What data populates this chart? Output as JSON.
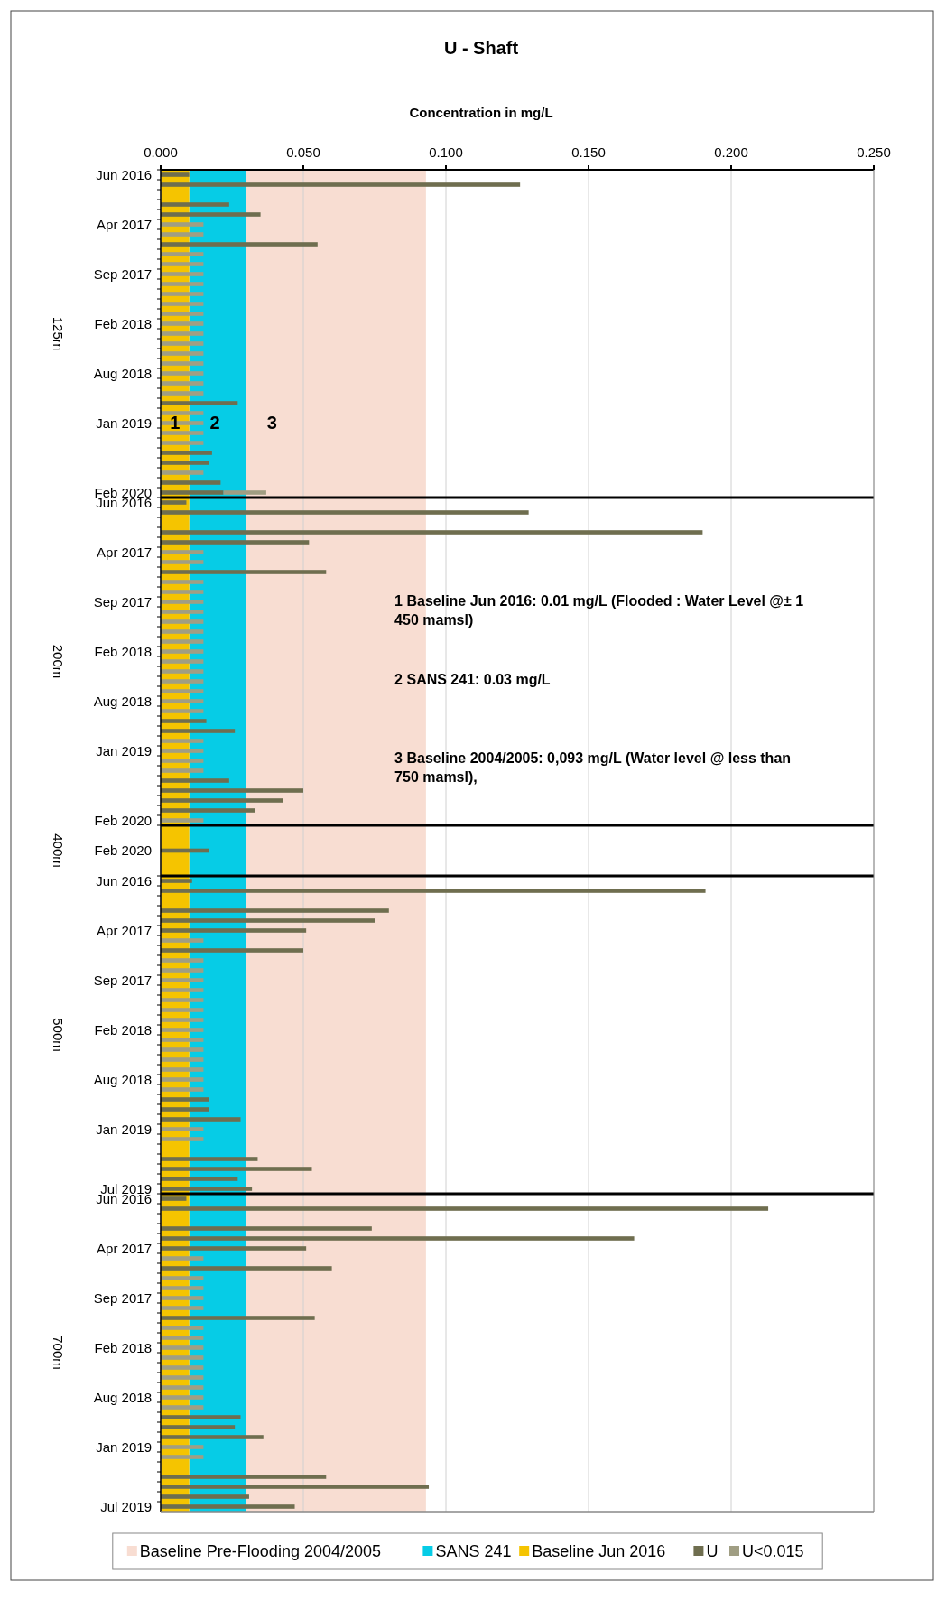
{
  "chart_data": [
    {
      "type": "bar",
      "orientation": "horizontal",
      "stacked": true,
      "title": "U - Shaft",
      "xlabel": "Concentration in mg/L",
      "ylabel": "125m",
      "grid": "x",
      "xlim": [
        0,
        0.25
      ],
      "xticks": [
        {
          "value": 0,
          "label": "0.000"
        },
        {
          "value": 0.05,
          "label": "0.050"
        },
        {
          "value": 0.1,
          "label": "0.100"
        },
        {
          "value": 0.15,
          "label": "0.150"
        },
        {
          "value": 0.2,
          "label": "0.200"
        },
        {
          "value": 0.25,
          "label": "0.250"
        }
      ],
      "categories": [
        "Jun 2016",
        null,
        null,
        null,
        null,
        "Apr 2017",
        null,
        null,
        null,
        null,
        "Sep 2017",
        null,
        null,
        null,
        null,
        "Feb 2018",
        null,
        null,
        null,
        null,
        "Aug 2018",
        null,
        null,
        null,
        null,
        "Jan 2019",
        null,
        null,
        null,
        null,
        null,
        null,
        "Feb 2020"
      ],
      "series": [
        {
          "color": "#6f6e4f",
          "values": [
            0.01,
            0.126,
            null,
            0.024,
            0.035,
            null,
            null,
            0.055,
            null,
            null,
            null,
            null,
            null,
            null,
            null,
            null,
            null,
            null,
            null,
            null,
            null,
            null,
            null,
            0.027,
            null,
            null,
            null,
            null,
            0.018,
            0.017,
            null,
            0.021,
            0.022
          ]
        },
        {
          "color": "#a09e83",
          "values": [
            null,
            null,
            null,
            null,
            null,
            0.015,
            0.015,
            null,
            0.015,
            0.015,
            0.015,
            0.015,
            0.015,
            0.015,
            0.015,
            0.015,
            0.015,
            0.015,
            0.015,
            0.015,
            0.015,
            0.015,
            0.015,
            null,
            0.015,
            0.015,
            0.015,
            0.015,
            null,
            null,
            0.015,
            null,
            0.015
          ]
        }
      ],
      "bands": [
        {
          "axis": "x",
          "from": 0.03,
          "to": 0.093,
          "label": "3",
          "color": "#f8ddd2"
        },
        {
          "axis": "x",
          "from": 0.01,
          "to": 0.03,
          "label": "2",
          "color": "#06cce6"
        },
        {
          "axis": "x",
          "from": 0,
          "to": 0.01,
          "label": "1",
          "color": "#f5c400"
        }
      ]
    },
    {
      "type": "bar",
      "orientation": "horizontal",
      "stacked": true,
      "ylabel": "200m",
      "grid": "x",
      "xlim": [
        0,
        0.25
      ],
      "tick_labels": "y",
      "xticks": [
        0,
        0.05,
        0.1,
        0.15,
        0.2,
        0.25
      ],
      "categories": [
        "Jun 2016",
        null,
        null,
        null,
        null,
        "Apr 2017",
        null,
        null,
        null,
        null,
        "Sep 2017",
        null,
        null,
        null,
        null,
        "Feb 2018",
        null,
        null,
        null,
        null,
        "Aug 2018",
        null,
        null,
        null,
        null,
        "Jan 2019",
        null,
        null,
        null,
        null,
        null,
        null,
        "Feb 2020"
      ],
      "series": [
        {
          "color": "#6f6e4f",
          "values": [
            0.009,
            0.129,
            null,
            0.19,
            0.052,
            null,
            null,
            0.058,
            null,
            null,
            null,
            null,
            null,
            null,
            null,
            null,
            null,
            null,
            null,
            null,
            null,
            null,
            0.016,
            0.026,
            null,
            null,
            null,
            null,
            0.024,
            0.05,
            0.043,
            0.033,
            null
          ]
        },
        {
          "color": "#a09e83",
          "values": [
            null,
            null,
            null,
            null,
            null,
            0.015,
            0.015,
            null,
            0.015,
            0.015,
            0.015,
            0.015,
            0.015,
            0.015,
            0.015,
            0.015,
            0.015,
            0.015,
            0.015,
            0.015,
            0.015,
            0.015,
            null,
            null,
            0.015,
            0.015,
            0.015,
            0.015,
            null,
            null,
            null,
            null,
            0.015
          ]
        }
      ],
      "bands": [
        {
          "axis": "x",
          "from": 0.03,
          "to": 0.093,
          "color": "#f8ddd2"
        },
        {
          "axis": "x",
          "from": 0.01,
          "to": 0.03,
          "color": "#06cce6"
        },
        {
          "axis": "x",
          "from": 0,
          "to": 0.01,
          "color": "#f5c400"
        }
      ],
      "annotations": [
        "1 Baseline Jun 2016: 0.01 mg/L (Flooded : Water Level @± 1 450 mamsl)",
        "2 SANS 241: 0.03 mg/L",
        "3 Baseline 2004/2005: 0,093 mg/L (Water level @ less than 750 mamsl),"
      ]
    },
    {
      "type": "bar",
      "orientation": "horizontal",
      "stacked": true,
      "ylabel": "400m",
      "grid": "x",
      "xlim": [
        0,
        0.25
      ],
      "tick_labels": "y",
      "xticks": [
        0,
        0.05,
        0.1,
        0.15,
        0.2,
        0.25
      ],
      "categories": [
        "Feb 2020"
      ],
      "series": [
        {
          "color": "#6f6e4f",
          "values": [
            0.017
          ]
        }
      ],
      "bands": [
        {
          "axis": "x",
          "from": 0.03,
          "to": 0.093,
          "color": "#f8ddd2"
        },
        {
          "axis": "x",
          "from": 0.01,
          "to": 0.03,
          "color": "#06cce6"
        },
        {
          "axis": "x",
          "from": 0,
          "to": 0.01,
          "color": "#f5c400"
        }
      ]
    },
    {
      "type": "bar",
      "orientation": "horizontal",
      "stacked": true,
      "ylabel": "500m",
      "grid": "x",
      "xlim": [
        0,
        0.25
      ],
      "tick_labels": "y",
      "xticks": [
        0,
        0.05,
        0.1,
        0.15,
        0.2,
        0.25
      ],
      "categories": [
        "Jun 2016",
        null,
        null,
        null,
        null,
        "Apr 2017",
        null,
        null,
        null,
        null,
        "Sep 2017",
        null,
        null,
        null,
        null,
        "Feb 2018",
        null,
        null,
        null,
        null,
        "Aug 2018",
        null,
        null,
        null,
        null,
        "Jan 2019",
        null,
        null,
        null,
        null,
        null,
        "Jul 2019"
      ],
      "series": [
        {
          "color": "#6f6e4f",
          "values": [
            0.011,
            0.191,
            null,
            0.08,
            0.075,
            0.051,
            null,
            0.05,
            null,
            null,
            null,
            null,
            null,
            null,
            null,
            null,
            null,
            null,
            null,
            null,
            null,
            null,
            0.017,
            0.017,
            0.028,
            null,
            null,
            null,
            0.034,
            0.053,
            0.027,
            0.032
          ]
        },
        {
          "color": "#a09e83",
          "values": [
            null,
            null,
            null,
            null,
            null,
            null,
            0.015,
            null,
            0.015,
            0.015,
            0.015,
            0.015,
            0.015,
            0.015,
            0.015,
            0.015,
            0.015,
            0.015,
            0.015,
            0.015,
            0.015,
            0.015,
            null,
            null,
            null,
            0.015,
            0.015,
            null,
            null,
            null,
            null,
            null
          ]
        }
      ],
      "bands": [
        {
          "axis": "x",
          "from": 0.03,
          "to": 0.093,
          "color": "#f8ddd2"
        },
        {
          "axis": "x",
          "from": 0.01,
          "to": 0.03,
          "color": "#06cce6"
        },
        {
          "axis": "x",
          "from": 0,
          "to": 0.01,
          "color": "#f5c400"
        }
      ]
    },
    {
      "type": "bar",
      "orientation": "horizontal",
      "stacked": true,
      "ylabel": "700m",
      "grid": "x",
      "xlim": [
        0,
        0.25
      ],
      "tick_labels": "y",
      "legend": "bottom",
      "xticks": [
        0,
        0.05,
        0.1,
        0.15,
        0.2,
        0.25
      ],
      "categories": [
        "Jun 2016",
        null,
        null,
        null,
        null,
        "Apr 2017",
        null,
        null,
        null,
        null,
        "Sep 2017",
        null,
        null,
        null,
        null,
        "Feb 2018",
        null,
        null,
        null,
        null,
        "Aug 2018",
        null,
        null,
        null,
        null,
        "Jan 2019",
        null,
        null,
        null,
        null,
        null,
        "Jul 2019"
      ],
      "series": [
        {
          "name": "U",
          "color": "#6f6e4f",
          "values": [
            0.009,
            0.213,
            null,
            0.074,
            0.166,
            0.051,
            null,
            0.06,
            null,
            null,
            null,
            null,
            0.054,
            null,
            null,
            null,
            null,
            null,
            null,
            null,
            null,
            null,
            0.028,
            0.026,
            0.036,
            null,
            null,
            null,
            0.058,
            0.094,
            0.031,
            0.047
          ]
        },
        {
          "name": "U<0.015",
          "color": "#a09e83",
          "values": [
            null,
            null,
            null,
            null,
            null,
            null,
            0.015,
            null,
            0.015,
            0.015,
            0.015,
            0.015,
            null,
            0.015,
            0.015,
            0.015,
            0.015,
            0.015,
            0.015,
            0.015,
            0.015,
            0.015,
            null,
            null,
            null,
            0.015,
            0.015,
            null,
            null,
            null,
            null,
            null
          ]
        }
      ],
      "bands": [
        {
          "axis": "x",
          "from": 0.03,
          "to": 0.093,
          "label": "Baseline Pre-Flooding 2004/2005",
          "color": "#f8ddd2"
        },
        {
          "axis": "x",
          "from": 0.01,
          "to": 0.03,
          "label": "SANS 241",
          "color": "#06cce6"
        },
        {
          "axis": "x",
          "from": 0,
          "to": 0.01,
          "label": "Baseline Jun 2016",
          "color": "#f5c400"
        }
      ]
    }
  ]
}
